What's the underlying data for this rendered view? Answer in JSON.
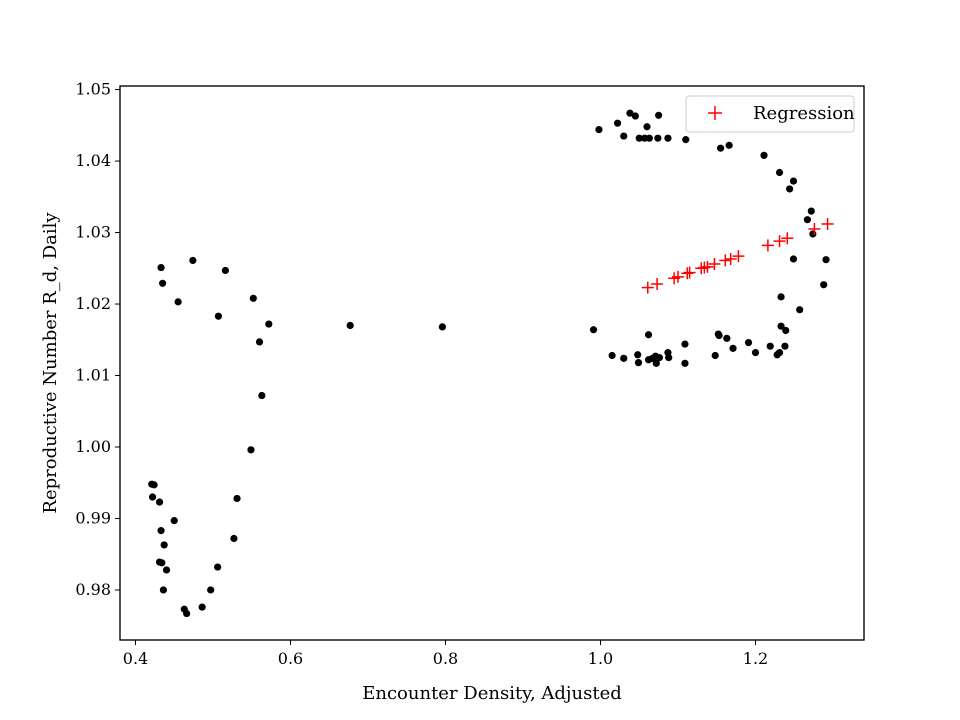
{
  "chart_data": {
    "type": "scatter",
    "xlabel": "Encounter Density, Adjusted",
    "ylabel": "Reproductive Number R_d, Daily",
    "xlim": [
      0.38,
      1.34
    ],
    "ylim": [
      0.973,
      1.0505
    ],
    "xticks": [
      {
        "value": 0.4,
        "label": "0.4"
      },
      {
        "value": 0.6,
        "label": "0.6"
      },
      {
        "value": 0.8,
        "label": "0.8"
      },
      {
        "value": 1.0,
        "label": "1.0"
      },
      {
        "value": 1.2,
        "label": "1.2"
      }
    ],
    "yticks": [
      {
        "value": 0.98,
        "label": "0.98"
      },
      {
        "value": 0.99,
        "label": "0.99"
      },
      {
        "value": 1.0,
        "label": "1.00"
      },
      {
        "value": 1.01,
        "label": "1.01"
      },
      {
        "value": 1.02,
        "label": "1.02"
      },
      {
        "value": 1.03,
        "label": "1.03"
      },
      {
        "value": 1.04,
        "label": "1.04"
      },
      {
        "value": 1.05,
        "label": "1.05"
      }
    ],
    "legend": {
      "position": "top-right",
      "entries": [
        "Regression"
      ]
    },
    "grid": false,
    "series": [
      {
        "marker": "dot",
        "color": "#000000",
        "points": [
          [
            0.421,
            0.9948
          ],
          [
            0.424,
            0.9947
          ],
          [
            0.422,
            0.993
          ],
          [
            0.431,
            0.9923
          ],
          [
            0.433,
            0.9883
          ],
          [
            0.437,
            0.9863
          ],
          [
            0.431,
            0.9839
          ],
          [
            0.434,
            0.9838
          ],
          [
            0.44,
            0.9828
          ],
          [
            0.436,
            0.98
          ],
          [
            0.45,
            0.9897
          ],
          [
            0.463,
            0.9773
          ],
          [
            0.466,
            0.9767
          ],
          [
            0.486,
            0.9776
          ],
          [
            0.497,
            0.98
          ],
          [
            0.506,
            0.9832
          ],
          [
            0.527,
            0.9872
          ],
          [
            0.531,
            0.9928
          ],
          [
            0.549,
            0.9996
          ],
          [
            0.563,
            1.0072
          ],
          [
            0.56,
            1.0147
          ],
          [
            0.572,
            1.0172
          ],
          [
            0.552,
            1.0208
          ],
          [
            0.507,
            1.0183
          ],
          [
            0.516,
            1.0247
          ],
          [
            0.474,
            1.0261
          ],
          [
            0.455,
            1.0203
          ],
          [
            0.435,
            1.0229
          ],
          [
            0.433,
            1.0251
          ],
          [
            0.677,
            1.017
          ],
          [
            0.796,
            1.0168
          ],
          [
            0.991,
            1.0164
          ],
          [
            0.998,
            1.0444
          ],
          [
            1.015,
            1.0128
          ],
          [
            1.022,
            1.0453
          ],
          [
            1.03,
            1.0124
          ],
          [
            1.03,
            1.0435
          ],
          [
            1.038,
            1.0467
          ],
          [
            1.045,
            1.0463
          ],
          [
            1.048,
            1.0129
          ],
          [
            1.049,
            1.0118
          ],
          [
            1.05,
            1.0432
          ],
          [
            1.057,
            1.0432
          ],
          [
            1.06,
            1.0448
          ],
          [
            1.062,
            1.0157
          ],
          [
            1.062,
            1.0122
          ],
          [
            1.063,
            1.0432
          ],
          [
            1.067,
            1.0124
          ],
          [
            1.071,
            1.0127
          ],
          [
            1.072,
            1.0117
          ],
          [
            1.074,
            1.0432
          ],
          [
            1.075,
            1.0464
          ],
          [
            1.076,
            1.0125
          ],
          [
            1.087,
            1.0432
          ],
          [
            1.087,
            1.0132
          ],
          [
            1.088,
            1.0125
          ],
          [
            1.109,
            1.0144
          ],
          [
            1.109,
            1.0117
          ],
          [
            1.11,
            1.043
          ],
          [
            1.148,
            1.0128
          ],
          [
            1.152,
            1.0158
          ],
          [
            1.153,
            1.0156
          ],
          [
            1.155,
            1.0418
          ],
          [
            1.163,
            1.0152
          ],
          [
            1.166,
            1.0422
          ],
          [
            1.171,
            1.0138
          ],
          [
            1.191,
            1.0146
          ],
          [
            1.2,
            1.0132
          ],
          [
            1.211,
            1.0408
          ],
          [
            1.219,
            1.0141
          ],
          [
            1.228,
            1.0129
          ],
          [
            1.231,
            1.0132
          ],
          [
            1.231,
            1.0384
          ],
          [
            1.233,
            1.0169
          ],
          [
            1.233,
            1.021
          ],
          [
            1.238,
            1.0141
          ],
          [
            1.239,
            1.0163
          ],
          [
            1.244,
            1.0361
          ],
          [
            1.249,
            1.0372
          ],
          [
            1.249,
            1.0263
          ],
          [
            1.257,
            1.0192
          ],
          [
            1.267,
            1.0318
          ],
          [
            1.272,
            1.033
          ],
          [
            1.274,
            1.0298
          ],
          [
            1.288,
            1.0227
          ],
          [
            1.291,
            1.0262
          ]
        ]
      },
      {
        "name": "Regression",
        "marker": "plus",
        "color": "#ff0000",
        "points": [
          [
            1.061,
            1.0223
          ],
          [
            1.073,
            1.0228
          ],
          [
            1.095,
            1.0236
          ],
          [
            1.1,
            1.0238
          ],
          [
            1.112,
            1.0243
          ],
          [
            1.115,
            1.0244
          ],
          [
            1.13,
            1.025
          ],
          [
            1.134,
            1.0251
          ],
          [
            1.138,
            1.0252
          ],
          [
            1.147,
            1.0256
          ],
          [
            1.161,
            1.0261
          ],
          [
            1.168,
            1.0263
          ],
          [
            1.178,
            1.0267
          ],
          [
            1.216,
            1.0282
          ],
          [
            1.231,
            1.0288
          ],
          [
            1.241,
            1.0292
          ],
          [
            1.276,
            1.0305
          ],
          [
            1.293,
            1.0312
          ]
        ]
      }
    ]
  }
}
